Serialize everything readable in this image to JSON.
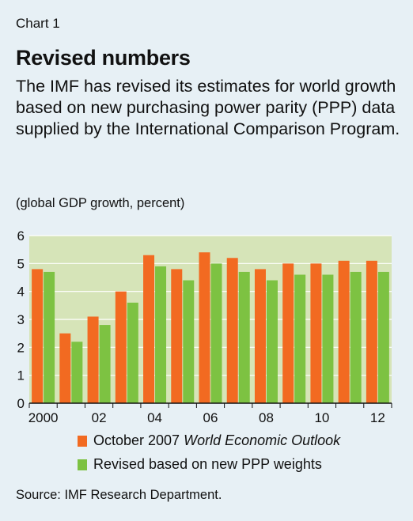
{
  "header": {
    "chart_label": "Chart 1",
    "title": "Revised numbers",
    "subtitle": "The IMF has revised its estimates for world growth based on new purchasing power parity (PPP) data supplied by the International Comparison Program.",
    "units": "(global GDP growth, percent)"
  },
  "legend": {
    "series1_prefix": "October 2007 ",
    "series1_italic": "World Economic Outlook",
    "series2": "Revised based on new PPP weights"
  },
  "source": "Source: IMF Research Department.",
  "colors": {
    "series1": "#f26a21",
    "series2": "#7dc242",
    "plot_bg": "#d6e4b8"
  },
  "chart_data": {
    "type": "bar",
    "categories": [
      "2000",
      "01",
      "02",
      "03",
      "04",
      "05",
      "06",
      "07",
      "08",
      "09",
      "10",
      "11",
      "12"
    ],
    "x_tick_labels": [
      "2000",
      "",
      "02",
      "",
      "04",
      "",
      "06",
      "",
      "08",
      "",
      "10",
      "",
      "12"
    ],
    "y_ticks": [
      0,
      1,
      2,
      3,
      4,
      5,
      6
    ],
    "ylim": [
      0,
      6
    ],
    "series": [
      {
        "name": "October 2007 World Economic Outlook",
        "values": [
          4.8,
          2.5,
          3.1,
          4.0,
          5.3,
          4.8,
          5.4,
          5.2,
          4.8,
          5.0,
          5.0,
          5.1,
          5.1
        ]
      },
      {
        "name": "Revised based on new PPP weights",
        "values": [
          4.7,
          2.2,
          2.8,
          3.6,
          4.9,
          4.4,
          5.0,
          4.7,
          4.4,
          4.6,
          4.6,
          4.7,
          4.7
        ]
      }
    ]
  }
}
